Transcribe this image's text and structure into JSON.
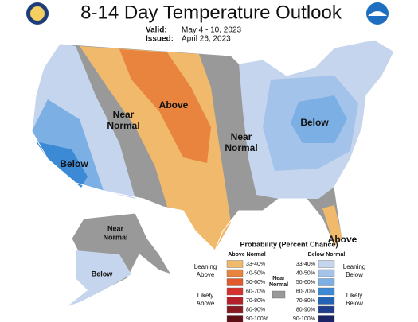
{
  "header": {
    "title": "8-14 Day Temperature Outlook",
    "valid_label": "Valid:",
    "valid_dates": "May 4 - 10, 2023",
    "issued_label": "Issued:",
    "issued_date": "April 26, 2023"
  },
  "map_labels": [
    {
      "lines": [
        "Near",
        "Normal"
      ]
    },
    {
      "lines": [
        "Above"
      ]
    },
    {
      "lines": [
        "Near",
        "Normal"
      ]
    },
    {
      "lines": [
        "Below"
      ]
    },
    {
      "lines": [
        "Below"
      ]
    },
    {
      "lines": [
        "Above"
      ]
    },
    {
      "lines": [
        "Near",
        "Normal"
      ]
    },
    {
      "lines": [
        "Below"
      ]
    }
  ],
  "legend": {
    "title": "Probability (Percent Chance)",
    "above_heading": "Above Normal",
    "below_heading": "Below Normal",
    "above_bins": [
      {
        "label": "33-40%",
        "color": "#f0b96b"
      },
      {
        "label": "40-50%",
        "color": "#e8843d"
      },
      {
        "label": "50-60%",
        "color": "#e05a2b"
      },
      {
        "label": "60-70%",
        "color": "#d6312a"
      },
      {
        "label": "70-80%",
        "color": "#b3202a"
      },
      {
        "label": "80-90%",
        "color": "#8a1a22"
      },
      {
        "label": "90-100%",
        "color": "#5e1016"
      }
    ],
    "below_bins": [
      {
        "label": "33-40%",
        "color": "#c5d5ee"
      },
      {
        "label": "40-50%",
        "color": "#a3c3ea"
      },
      {
        "label": "50-60%",
        "color": "#7cb0e4"
      },
      {
        "label": "60-70%",
        "color": "#3c8ad6"
      },
      {
        "label": "70-80%",
        "color": "#2463b4"
      },
      {
        "label": "80-90%",
        "color": "#203e8c"
      },
      {
        "label": "90-100%",
        "color": "#1a2466"
      }
    ],
    "near_normal": {
      "lines": [
        "Near",
        "Normal"
      ],
      "color": "#999999"
    },
    "leaning_above": [
      "Leaning",
      "Above"
    ],
    "likely_above": [
      "Likely",
      "Above"
    ],
    "leaning_below": [
      "Leaning",
      "Below"
    ],
    "likely_below": [
      "Likely",
      "Below"
    ]
  }
}
